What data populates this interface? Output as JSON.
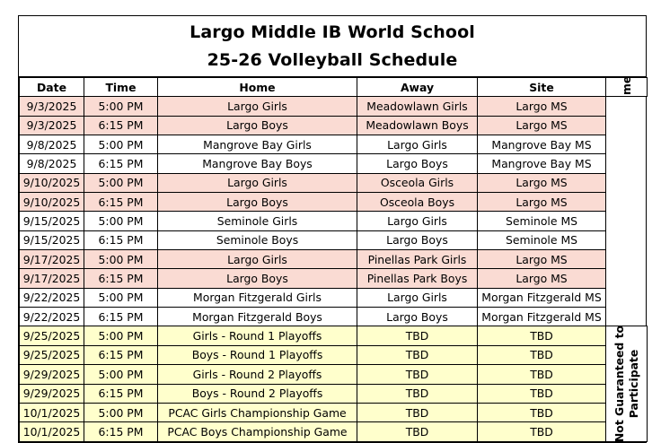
{
  "title": {
    "line1": "Largo Middle IB World School",
    "line2": "25-26 Volleyball Schedule"
  },
  "columns": [
    "Date",
    "Time",
    "Home",
    "Away",
    "Site"
  ],
  "side_labels": {
    "official": "Official Game Schedule",
    "playoff_line1": "Not Guaranteed to",
    "playoff_line2": "Participate"
  },
  "rows": [
    {
      "date": "9/3/2025",
      "time": "5:00 PM",
      "home": "Largo Girls",
      "away": "Meadowlawn Girls",
      "site": "Largo MS",
      "shade": "pink"
    },
    {
      "date": "9/3/2025",
      "time": "6:15 PM",
      "home": "Largo Boys",
      "away": "Meadowlawn Boys",
      "site": "Largo MS",
      "shade": "pink"
    },
    {
      "date": "9/8/2025",
      "time": "5:00 PM",
      "home": "Mangrove Bay Girls",
      "away": "Largo Girls",
      "site": "Mangrove Bay MS",
      "shade": "white"
    },
    {
      "date": "9/8/2025",
      "time": "6:15 PM",
      "home": "Mangrove Bay Boys",
      "away": "Largo Boys",
      "site": "Mangrove Bay MS",
      "shade": "white"
    },
    {
      "date": "9/10/2025",
      "time": "5:00 PM",
      "home": "Largo Girls",
      "away": "Osceola Girls",
      "site": "Largo MS",
      "shade": "pink"
    },
    {
      "date": "9/10/2025",
      "time": "6:15 PM",
      "home": "Largo Boys",
      "away": "Osceola Boys",
      "site": "Largo MS",
      "shade": "pink"
    },
    {
      "date": "9/15/2025",
      "time": "5:00 PM",
      "home": "Seminole Girls",
      "away": "Largo Girls",
      "site": "Seminole MS",
      "shade": "white"
    },
    {
      "date": "9/15/2025",
      "time": "6:15 PM",
      "home": "Seminole Boys",
      "away": "Largo Boys",
      "site": "Seminole MS",
      "shade": "white"
    },
    {
      "date": "9/17/2025",
      "time": "5:00 PM",
      "home": "Largo Girls",
      "away": "Pinellas Park Girls",
      "site": "Largo MS",
      "shade": "pink"
    },
    {
      "date": "9/17/2025",
      "time": "6:15 PM",
      "home": "Largo Boys",
      "away": "Pinellas Park Boys",
      "site": "Largo MS",
      "shade": "pink"
    },
    {
      "date": "9/22/2025",
      "time": "5:00 PM",
      "home": "Morgan Fitzgerald Girls",
      "away": "Largo Girls",
      "site": "Morgan Fitzgerald MS",
      "shade": "white"
    },
    {
      "date": "9/22/2025",
      "time": "6:15 PM",
      "home": "Morgan Fitzgerald Boys",
      "away": "Largo Boys",
      "site": "Morgan Fitzgerald MS",
      "shade": "white"
    },
    {
      "date": "9/25/2025",
      "time": "5:00 PM",
      "home": "Girls - Round 1 Playoffs",
      "away": "TBD",
      "site": "TBD",
      "shade": "yellow"
    },
    {
      "date": "9/25/2025",
      "time": "6:15 PM",
      "home": "Boys - Round 1 Playoffs",
      "away": "TBD",
      "site": "TBD",
      "shade": "yellow"
    },
    {
      "date": "9/29/2025",
      "time": "5:00 PM",
      "home": "Girls - Round 2 Playoffs",
      "away": "TBD",
      "site": "TBD",
      "shade": "yellow"
    },
    {
      "date": "9/29/2025",
      "time": "6:15 PM",
      "home": "Boys - Round 2 Playoffs",
      "away": "TBD",
      "site": "TBD",
      "shade": "yellow"
    },
    {
      "date": "10/1/2025",
      "time": "5:00 PM",
      "home": "PCAC Girls Championship Game",
      "away": "TBD",
      "site": "TBD",
      "shade": "yellow"
    },
    {
      "date": "10/1/2025",
      "time": "6:15 PM",
      "home": "PCAC Boys Championship Game",
      "away": "TBD",
      "site": "TBD",
      "shade": "yellow"
    }
  ]
}
